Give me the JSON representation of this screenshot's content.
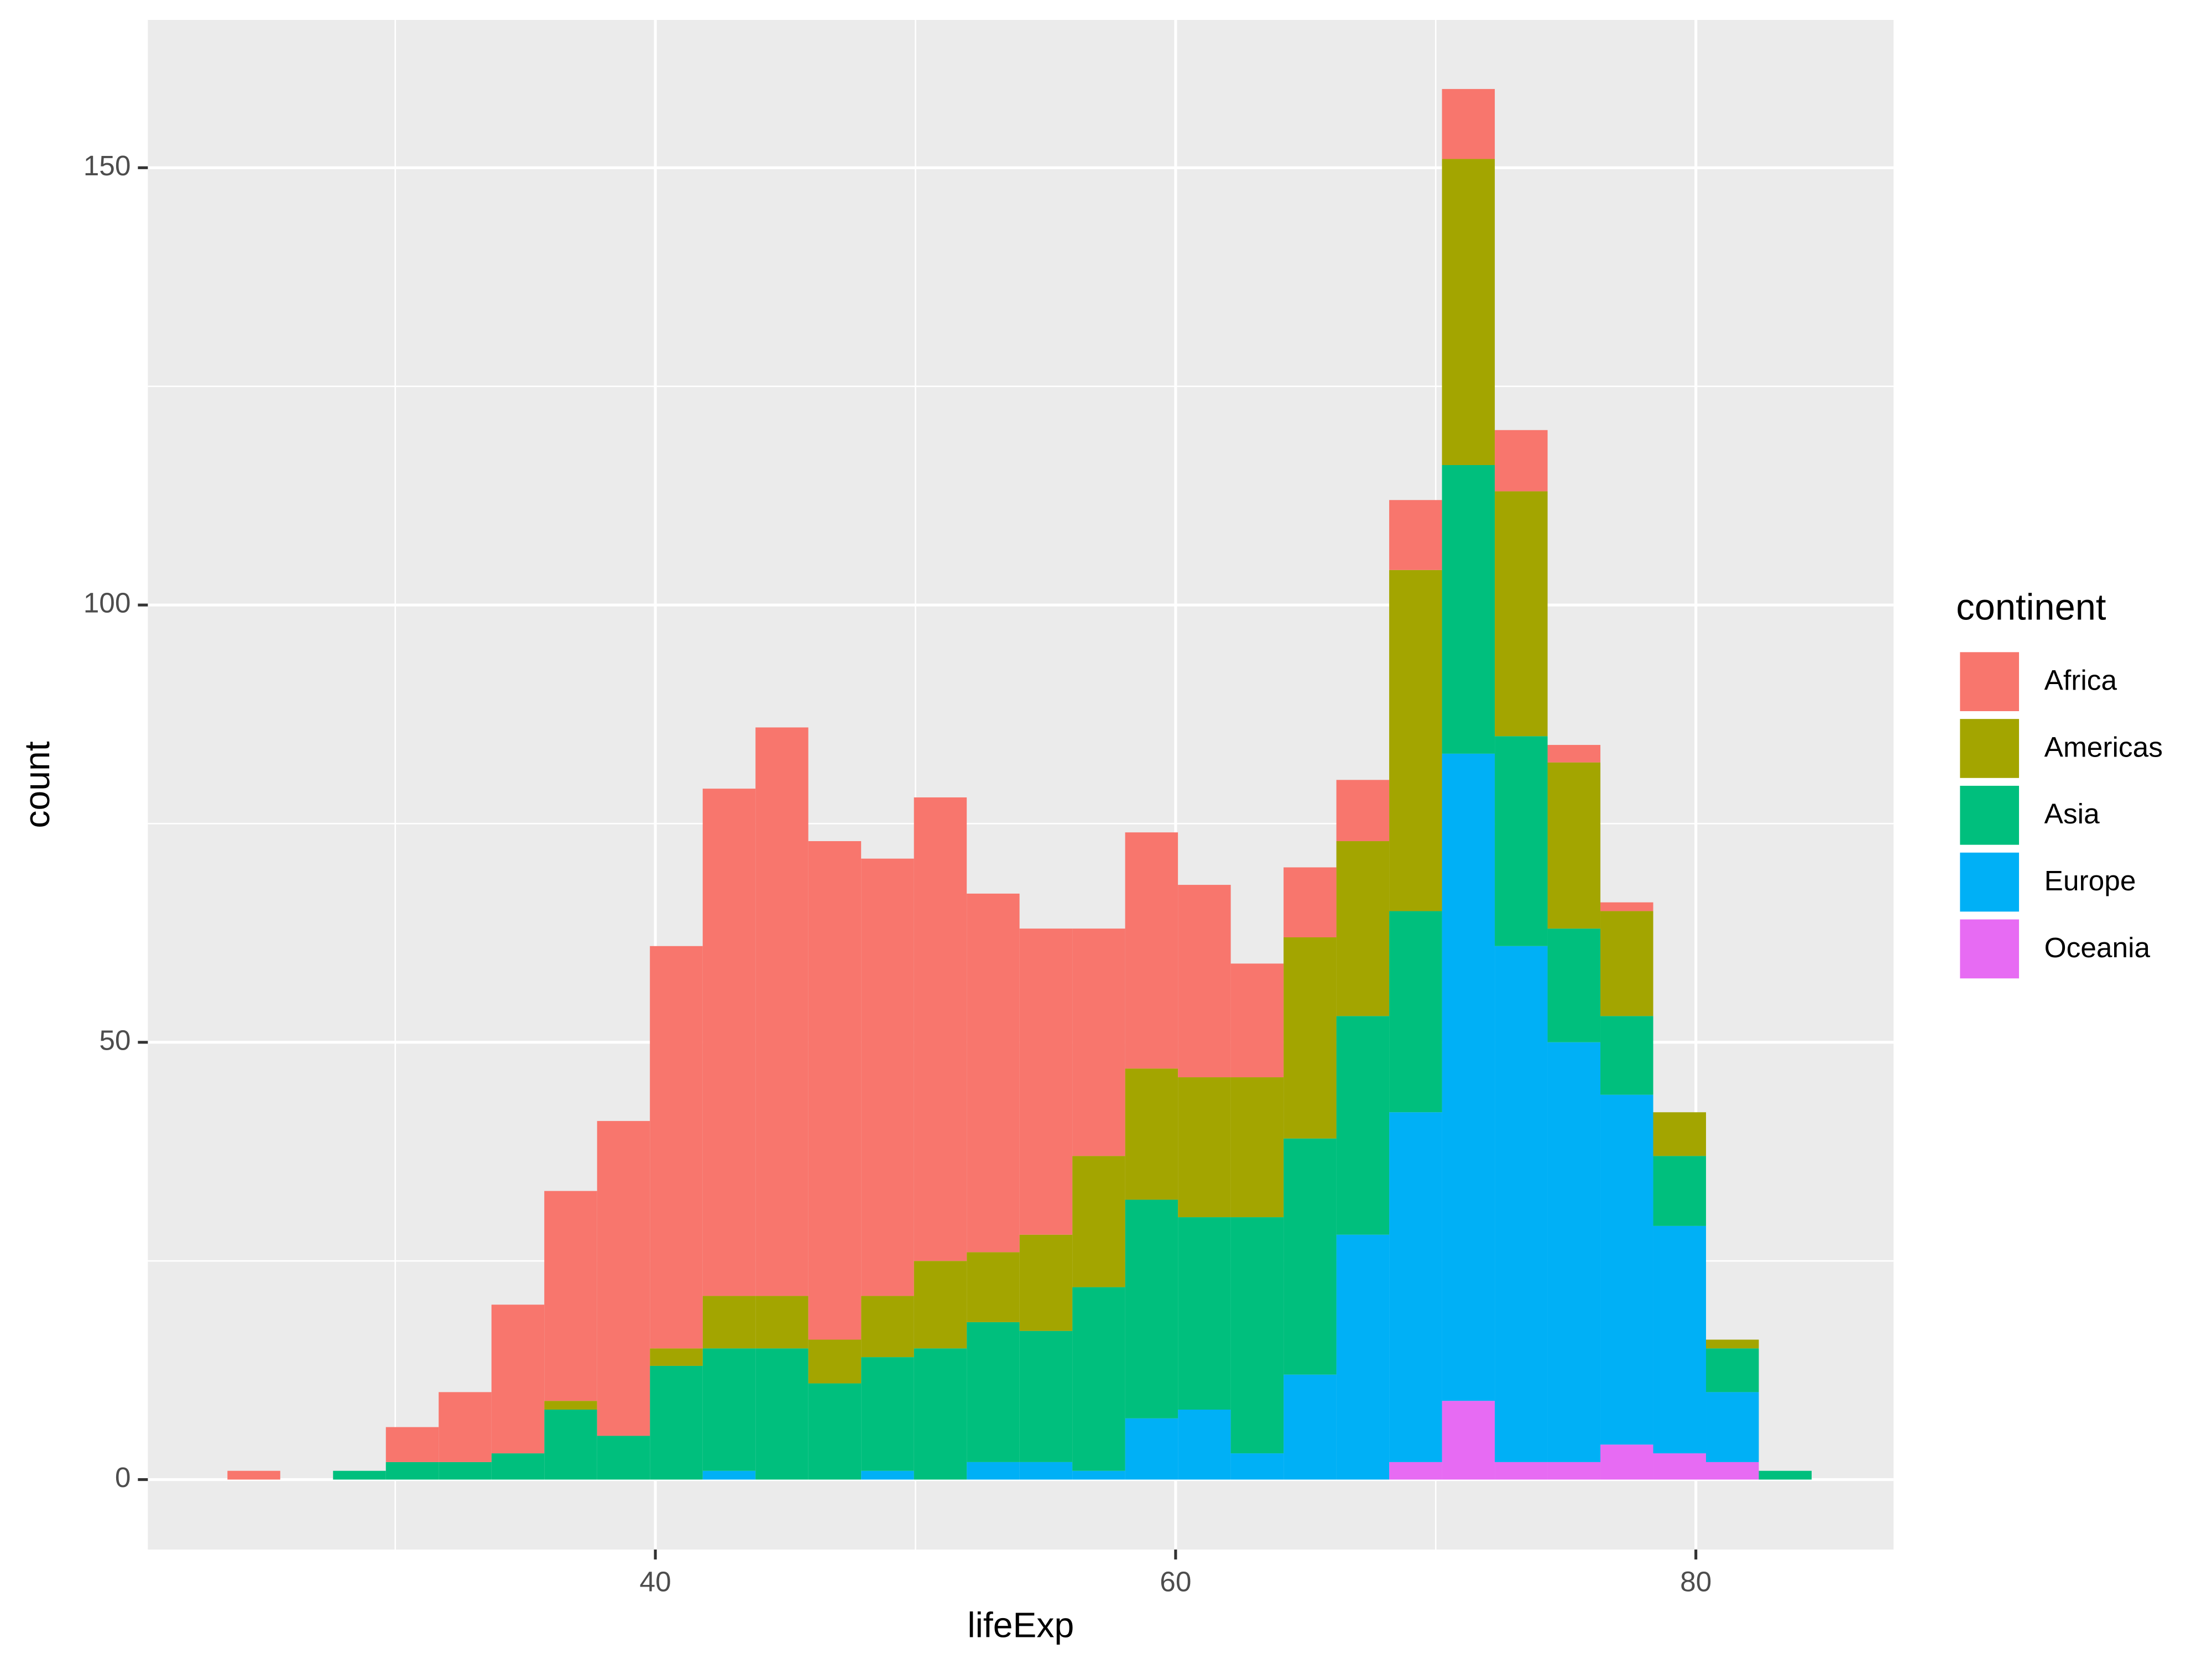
{
  "chart_data": {
    "type": "histogram",
    "x_label": "lifeExp",
    "y_label": "count",
    "legend_title": "continent",
    "legend_position": "right",
    "grid": true,
    "bins": [
      23.55,
      25.58,
      27.61,
      29.64,
      31.67,
      33.7,
      35.73,
      37.76,
      39.79,
      41.82,
      43.85,
      45.88,
      47.91,
      49.94,
      51.97,
      54.0,
      56.03,
      58.06,
      60.09,
      62.12,
      64.15,
      66.18,
      68.21,
      70.24,
      72.27,
      74.3,
      76.33,
      78.36,
      80.39,
      82.42,
      84.45
    ],
    "series": [
      {
        "name": "Africa",
        "color": "#F8766D",
        "values": [
          1,
          0,
          0,
          4,
          8,
          17,
          24,
          36,
          46,
          58,
          65,
          57,
          50,
          53,
          41,
          35,
          26,
          27,
          22,
          13,
          8,
          7,
          8,
          8,
          7,
          2,
          1,
          0,
          0,
          0
        ]
      },
      {
        "name": "Americas",
        "color": "#A3A500",
        "values": [
          0,
          0,
          0,
          0,
          0,
          0,
          1,
          0,
          2,
          6,
          6,
          5,
          7,
          10,
          8,
          11,
          15,
          15,
          16,
          16,
          23,
          20,
          39,
          35,
          28,
          19,
          12,
          5,
          1,
          0
        ]
      },
      {
        "name": "Asia",
        "color": "#00BF7D",
        "values": [
          0,
          0,
          1,
          2,
          2,
          3,
          8,
          5,
          13,
          14,
          15,
          11,
          13,
          15,
          16,
          15,
          21,
          25,
          22,
          27,
          27,
          25,
          23,
          33,
          24,
          13,
          9,
          8,
          5,
          1
        ]
      },
      {
        "name": "Europe",
        "color": "#00B0F6",
        "values": [
          0,
          0,
          0,
          0,
          0,
          0,
          0,
          0,
          0,
          1,
          0,
          0,
          1,
          0,
          2,
          2,
          1,
          7,
          8,
          3,
          12,
          28,
          40,
          74,
          59,
          48,
          40,
          26,
          8,
          0
        ]
      },
      {
        "name": "Oceania",
        "color": "#E76BF3",
        "values": [
          0,
          0,
          0,
          0,
          0,
          0,
          0,
          0,
          0,
          0,
          0,
          0,
          0,
          0,
          0,
          0,
          0,
          0,
          0,
          0,
          0,
          0,
          2,
          9,
          2,
          2,
          4,
          3,
          2,
          0
        ]
      }
    ],
    "xlim": [
      20.49,
      87.6
    ],
    "ylim": [
      -8,
      166.9
    ],
    "xticks": [
      40,
      60,
      80
    ],
    "yticks": [
      0,
      50,
      100,
      150
    ],
    "x_minor_breaks": [
      30,
      50,
      70
    ],
    "y_minor_breaks": [
      25,
      75,
      125
    ]
  }
}
